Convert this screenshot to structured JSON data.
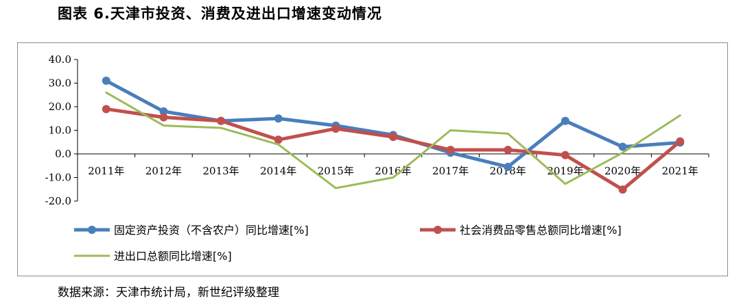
{
  "title": "图表 6.天津市投资、消费及进出口增速变动情况",
  "source": "数据来源：天津市统计局，新世纪评级整理",
  "chart_data": {
    "type": "line",
    "categories": [
      "2011年",
      "2012年",
      "2013年",
      "2014年",
      "2015年",
      "2016年",
      "2017年",
      "2018年",
      "2019年",
      "2020年",
      "2021年"
    ],
    "y_ticks": [
      "40.0",
      "30.0",
      "20.0",
      "10.0",
      "0.0",
      "-10.0",
      "-20.0"
    ],
    "ylim": [
      -20,
      40
    ],
    "grid": false,
    "legend_position": "bottom",
    "series": [
      {
        "name": "固定资产投资（不含农户）同比增速[%]",
        "color": "#4a7ebb",
        "markers": true,
        "values": [
          31.0,
          18.0,
          14.0,
          15.0,
          12.0,
          8.0,
          0.5,
          -5.5,
          14.0,
          3.0,
          4.8
        ]
      },
      {
        "name": "社会消费品零售总额同比增速[%]",
        "color": "#c0504d",
        "markers": true,
        "values": [
          19.0,
          15.5,
          14.0,
          6.0,
          10.7,
          7.2,
          1.7,
          1.7,
          -0.5,
          -15.1,
          5.3
        ]
      },
      {
        "name": "进出口总额同比增速[%]",
        "color": "#9bbb59",
        "markers": false,
        "values": [
          26.0,
          12.0,
          11.0,
          4.0,
          -14.5,
          -10.0,
          10.0,
          8.6,
          -12.7,
          0.5,
          16.3
        ]
      }
    ]
  }
}
